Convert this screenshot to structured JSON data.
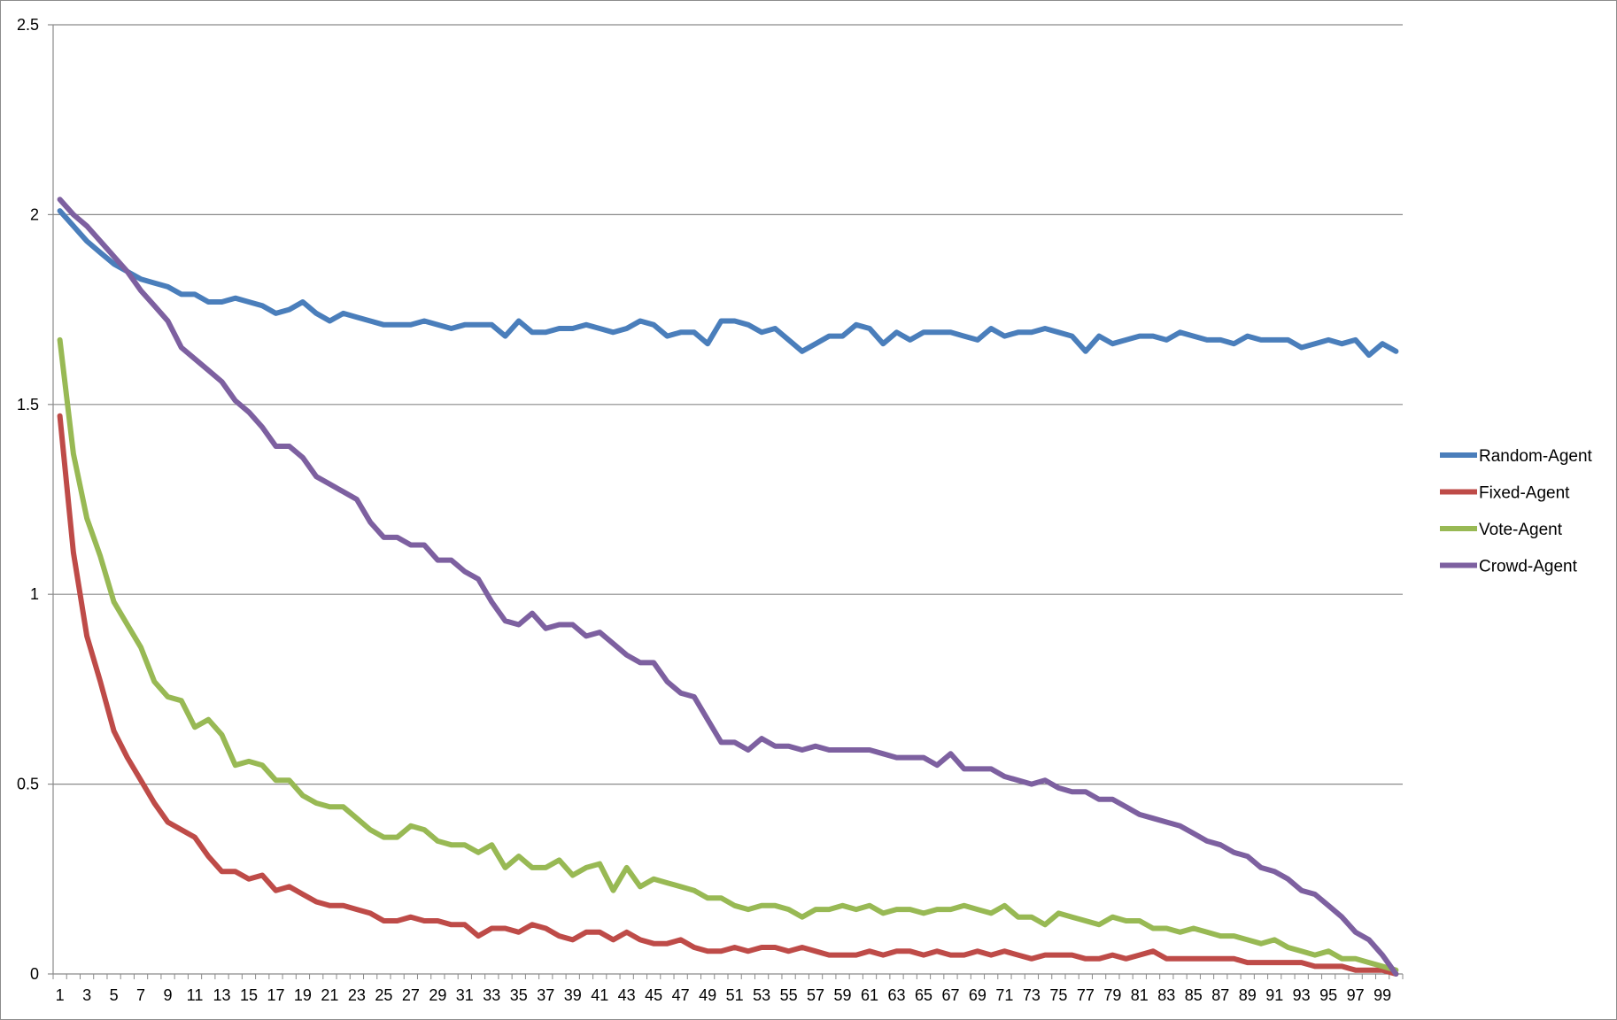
{
  "chart_data": {
    "type": "line",
    "title": "",
    "xlabel": "",
    "ylabel": "",
    "ylim": [
      0,
      2.5
    ],
    "yticks": [
      0,
      0.5,
      1,
      1.5,
      2,
      2.5
    ],
    "ytick_labels": [
      "0",
      "0.5",
      "1",
      "1.5",
      "2",
      "2.5"
    ],
    "xlim": [
      1,
      100
    ],
    "xtick_labels": [
      "1",
      "3",
      "5",
      "7",
      "9",
      "11",
      "13",
      "15",
      "17",
      "19",
      "21",
      "23",
      "25",
      "27",
      "29",
      "31",
      "33",
      "35",
      "37",
      "39",
      "41",
      "43",
      "45",
      "47",
      "49",
      "51",
      "53",
      "55",
      "57",
      "59",
      "61",
      "63",
      "65",
      "67",
      "69",
      "71",
      "73",
      "75",
      "77",
      "79",
      "81",
      "83",
      "85",
      "87",
      "89",
      "91",
      "93",
      "95",
      "97",
      "99"
    ],
    "grid": "horizontal",
    "legend_position": "right",
    "series": [
      {
        "name": "Random-Agent",
        "color": "#4a7ebb",
        "values": [
          2.01,
          1.97,
          1.93,
          1.9,
          1.87,
          1.85,
          1.83,
          1.82,
          1.81,
          1.79,
          1.79,
          1.77,
          1.77,
          1.78,
          1.77,
          1.76,
          1.74,
          1.75,
          1.77,
          1.74,
          1.72,
          1.74,
          1.73,
          1.72,
          1.71,
          1.71,
          1.71,
          1.72,
          1.71,
          1.7,
          1.71,
          1.71,
          1.71,
          1.68,
          1.72,
          1.69,
          1.69,
          1.7,
          1.7,
          1.71,
          1.7,
          1.69,
          1.7,
          1.72,
          1.71,
          1.68,
          1.69,
          1.69,
          1.66,
          1.72,
          1.72,
          1.71,
          1.69,
          1.7,
          1.67,
          1.64,
          1.66,
          1.68,
          1.68,
          1.71,
          1.7,
          1.66,
          1.69,
          1.67,
          1.69,
          1.69,
          1.69,
          1.68,
          1.67,
          1.7,
          1.68,
          1.69,
          1.69,
          1.7,
          1.69,
          1.68,
          1.64,
          1.68,
          1.66,
          1.67,
          1.68,
          1.68,
          1.67,
          1.69,
          1.68,
          1.67,
          1.67,
          1.66,
          1.68,
          1.67,
          1.67,
          1.67,
          1.65,
          1.66,
          1.67,
          1.66,
          1.67,
          1.63,
          1.66,
          1.64
        ]
      },
      {
        "name": "Fixed-Agent",
        "color": "#be4b48",
        "values": [
          1.47,
          1.11,
          0.89,
          0.77,
          0.64,
          0.57,
          0.51,
          0.45,
          0.4,
          0.38,
          0.36,
          0.31,
          0.27,
          0.27,
          0.25,
          0.26,
          0.22,
          0.23,
          0.21,
          0.19,
          0.18,
          0.18,
          0.17,
          0.16,
          0.14,
          0.14,
          0.15,
          0.14,
          0.14,
          0.13,
          0.13,
          0.1,
          0.12,
          0.12,
          0.11,
          0.13,
          0.12,
          0.1,
          0.09,
          0.11,
          0.11,
          0.09,
          0.11,
          0.09,
          0.08,
          0.08,
          0.09,
          0.07,
          0.06,
          0.06,
          0.07,
          0.06,
          0.07,
          0.07,
          0.06,
          0.07,
          0.06,
          0.05,
          0.05,
          0.05,
          0.06,
          0.05,
          0.06,
          0.06,
          0.05,
          0.06,
          0.05,
          0.05,
          0.06,
          0.05,
          0.06,
          0.05,
          0.04,
          0.05,
          0.05,
          0.05,
          0.04,
          0.04,
          0.05,
          0.04,
          0.05,
          0.06,
          0.04,
          0.04,
          0.04,
          0.04,
          0.04,
          0.04,
          0.03,
          0.03,
          0.03,
          0.03,
          0.03,
          0.02,
          0.02,
          0.02,
          0.01,
          0.01,
          0.01,
          0.0
        ]
      },
      {
        "name": "Vote-Agent",
        "color": "#98b954",
        "values": [
          1.67,
          1.37,
          1.2,
          1.1,
          0.98,
          0.92,
          0.86,
          0.77,
          0.73,
          0.72,
          0.65,
          0.67,
          0.63,
          0.55,
          0.56,
          0.55,
          0.51,
          0.51,
          0.47,
          0.45,
          0.44,
          0.44,
          0.41,
          0.38,
          0.36,
          0.36,
          0.39,
          0.38,
          0.35,
          0.34,
          0.34,
          0.32,
          0.34,
          0.28,
          0.31,
          0.28,
          0.28,
          0.3,
          0.26,
          0.28,
          0.29,
          0.22,
          0.28,
          0.23,
          0.25,
          0.24,
          0.23,
          0.22,
          0.2,
          0.2,
          0.18,
          0.17,
          0.18,
          0.18,
          0.17,
          0.15,
          0.17,
          0.17,
          0.18,
          0.17,
          0.18,
          0.16,
          0.17,
          0.17,
          0.16,
          0.17,
          0.17,
          0.18,
          0.17,
          0.16,
          0.18,
          0.15,
          0.15,
          0.13,
          0.16,
          0.15,
          0.14,
          0.13,
          0.15,
          0.14,
          0.14,
          0.12,
          0.12,
          0.11,
          0.12,
          0.11,
          0.1,
          0.1,
          0.09,
          0.08,
          0.09,
          0.07,
          0.06,
          0.05,
          0.06,
          0.04,
          0.04,
          0.03,
          0.02,
          0.01
        ]
      },
      {
        "name": "Crowd-Agent",
        "color": "#7d60a0",
        "values": [
          2.04,
          2.0,
          1.97,
          1.93,
          1.89,
          1.85,
          1.8,
          1.76,
          1.72,
          1.65,
          1.62,
          1.59,
          1.56,
          1.51,
          1.48,
          1.44,
          1.39,
          1.39,
          1.36,
          1.31,
          1.29,
          1.27,
          1.25,
          1.19,
          1.15,
          1.15,
          1.13,
          1.13,
          1.09,
          1.09,
          1.06,
          1.04,
          0.98,
          0.93,
          0.92,
          0.95,
          0.91,
          0.92,
          0.92,
          0.89,
          0.9,
          0.87,
          0.84,
          0.82,
          0.82,
          0.77,
          0.74,
          0.73,
          0.67,
          0.61,
          0.61,
          0.59,
          0.62,
          0.6,
          0.6,
          0.59,
          0.6,
          0.59,
          0.59,
          0.59,
          0.59,
          0.58,
          0.57,
          0.57,
          0.57,
          0.55,
          0.58,
          0.54,
          0.54,
          0.54,
          0.52,
          0.51,
          0.5,
          0.51,
          0.49,
          0.48,
          0.48,
          0.46,
          0.46,
          0.44,
          0.42,
          0.41,
          0.4,
          0.39,
          0.37,
          0.35,
          0.34,
          0.32,
          0.31,
          0.28,
          0.27,
          0.25,
          0.22,
          0.21,
          0.18,
          0.15,
          0.11,
          0.09,
          0.05,
          0.0
        ]
      }
    ]
  }
}
